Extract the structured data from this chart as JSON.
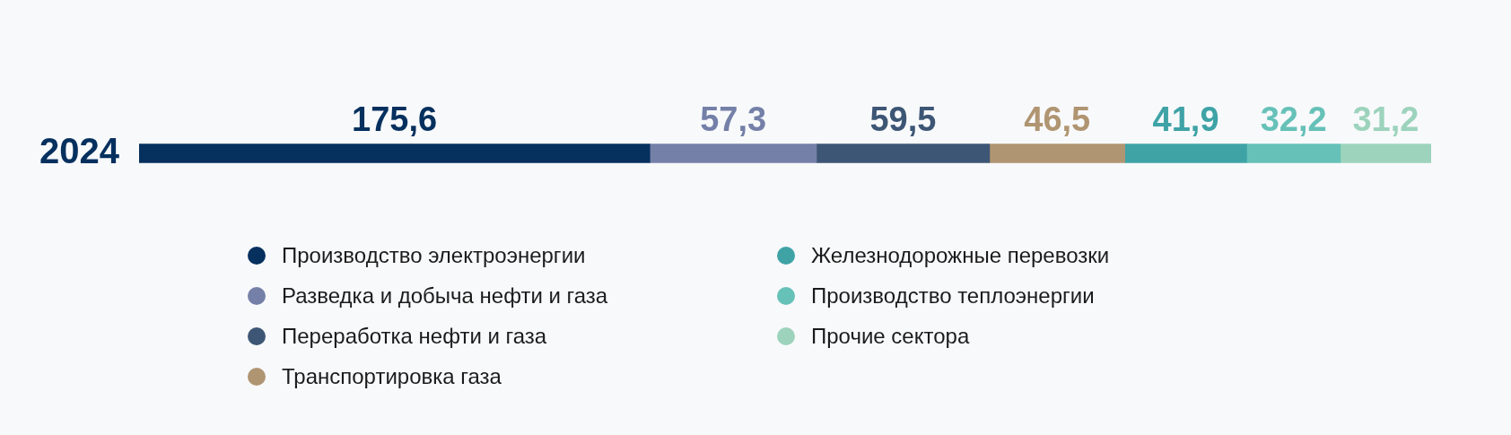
{
  "chart_data": {
    "type": "bar",
    "orientation": "horizontal",
    "stacked": true,
    "categories": [
      "2024"
    ],
    "legend": "bottom",
    "series": [
      {
        "name": "Производство электроэнергии",
        "color": "#06305e",
        "values": [
          175.6
        ],
        "value_labels": [
          "175,6"
        ]
      },
      {
        "name": "Разведка и добыча нефти и газа",
        "color": "#7480a8",
        "values": [
          57.3
        ],
        "value_labels": [
          "57,3"
        ]
      },
      {
        "name": "Переработка нефти и газа",
        "color": "#3d5675",
        "values": [
          59.5
        ],
        "value_labels": [
          "59,5"
        ]
      },
      {
        "name": "Транспортировка газа",
        "color": "#b09572",
        "values": [
          46.5
        ],
        "value_labels": [
          "46,5"
        ]
      },
      {
        "name": "Железнодорожные перевозки",
        "color": "#3fa3a6",
        "values": [
          41.9
        ],
        "value_labels": [
          "41,9"
        ]
      },
      {
        "name": "Производство теплоэнергии",
        "color": "#66c1b8",
        "values": [
          32.2
        ],
        "value_labels": [
          "32,2"
        ]
      },
      {
        "name": "Прочие сектора",
        "color": "#9dd3bc",
        "values": [
          31.2
        ],
        "value_labels": [
          "31,2"
        ]
      }
    ]
  }
}
